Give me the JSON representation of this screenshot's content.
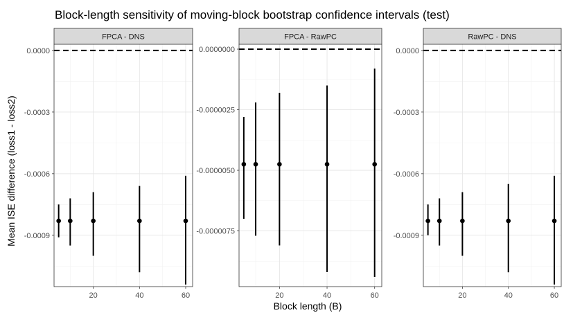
{
  "chart_data": {
    "type": "scatter",
    "title": "Block-length sensitivity of moving-block bootstrap confidence intervals (test)",
    "xlabel": "Block length (B)",
    "ylabel": "Mean ISE difference (loss1 - loss2)",
    "reference_line": 0,
    "panels": [
      {
        "name": "FPCA - DNS",
        "ylim": [
          -0.00115,
          3e-05
        ],
        "yticks": [
          0.0,
          -0.0003,
          -0.0006,
          -0.0009
        ],
        "ytick_labels": [
          "0.0000",
          "-0.0003",
          "-0.0006",
          "-0.0009"
        ],
        "x": [
          5,
          10,
          20,
          40,
          60
        ],
        "y": [
          -0.00083,
          -0.00083,
          -0.00083,
          -0.00083,
          -0.00083
        ],
        "lower": [
          -0.00091,
          -0.00095,
          -0.001,
          -0.00108,
          -0.00114
        ],
        "upper": [
          -0.00075,
          -0.00072,
          -0.00069,
          -0.00066,
          -0.00061
        ]
      },
      {
        "name": "FPCA - RawPC",
        "ylim": [
          -9.8e-06,
          2e-07
        ],
        "yticks": [
          0.0,
          -2.5e-06,
          -5e-06,
          -7.5e-06
        ],
        "ytick_labels": [
          "0.0000000",
          "-0.0000025",
          "-0.0000050",
          "-0.0000075"
        ],
        "x": [
          5,
          10,
          20,
          40,
          60
        ],
        "y": [
          -4.75e-06,
          -4.75e-06,
          -4.75e-06,
          -4.75e-06,
          -4.75e-06
        ],
        "lower": [
          -7e-06,
          -7.7e-06,
          -8.1e-06,
          -9.2e-06,
          -9.4e-06
        ],
        "upper": [
          -2.8e-06,
          -2.2e-06,
          -1.8e-06,
          -1.5e-06,
          -8e-07
        ]
      },
      {
        "name": "RawPC - DNS",
        "ylim": [
          -0.00115,
          3e-05
        ],
        "yticks": [
          0.0,
          -0.0003,
          -0.0006,
          -0.0009
        ],
        "ytick_labels": [
          "0.0000",
          "-0.0003",
          "-0.0006",
          "-0.0009"
        ],
        "x": [
          5,
          10,
          20,
          40,
          60
        ],
        "y": [
          -0.00083,
          -0.00083,
          -0.00083,
          -0.00083,
          -0.00083
        ],
        "lower": [
          -0.0009,
          -0.00095,
          -0.001,
          -0.00108,
          -0.00114
        ],
        "upper": [
          -0.00075,
          -0.00072,
          -0.00069,
          -0.00065,
          -0.00061
        ]
      }
    ],
    "xlim": [
      3,
      63
    ],
    "xticks": [
      20,
      40,
      60
    ],
    "xtick_labels": [
      "20",
      "40",
      "60"
    ],
    "grid": true
  }
}
